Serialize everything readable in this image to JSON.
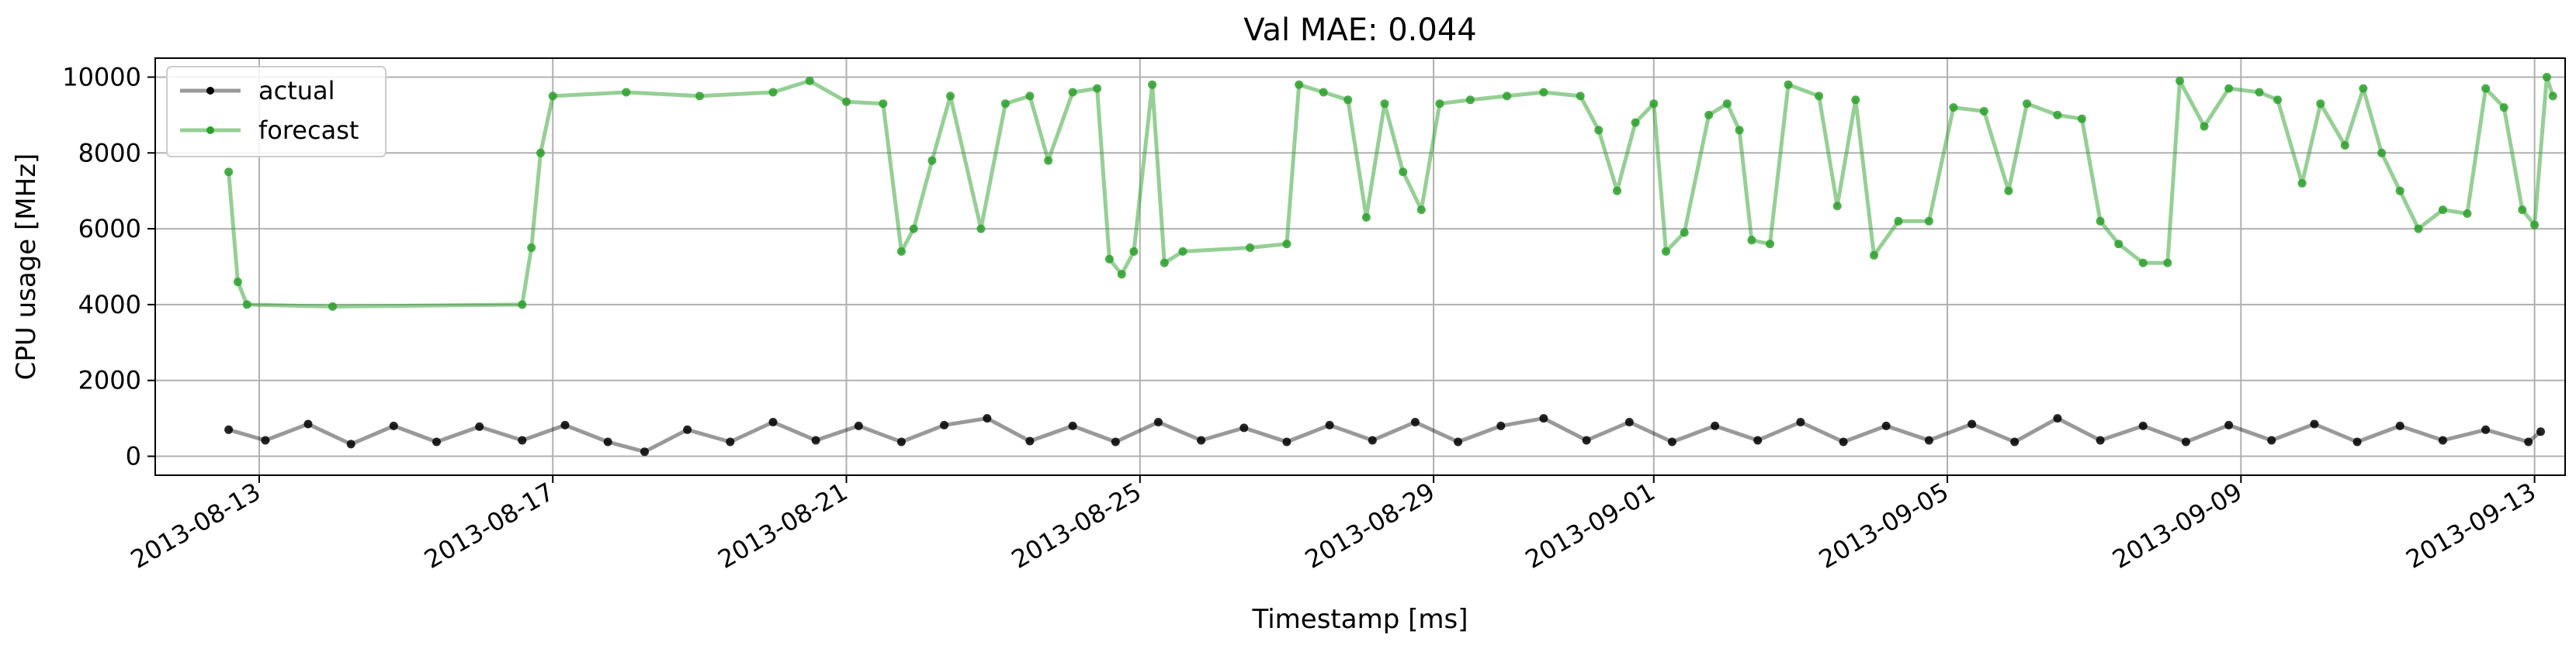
{
  "chart_data": {
    "type": "line",
    "title": "Val MAE: 0.044",
    "xlabel": "Timestamp [ms]",
    "ylabel": "CPU usage [MHz]",
    "x_type": "date",
    "xlim": [
      "2013-08-11T14:00",
      "2013-09-13T10:00"
    ],
    "ylim": [
      -500,
      10500
    ],
    "xticks": [
      "2013-08-13",
      "2013-08-17",
      "2013-08-21",
      "2013-08-25",
      "2013-08-29",
      "2013-09-01",
      "2013-09-05",
      "2013-09-09",
      "2013-09-13"
    ],
    "yticks": [
      0,
      2000,
      4000,
      6000,
      8000,
      10000
    ],
    "grid": true,
    "legend": {
      "position": "top-left",
      "entries": [
        "actual",
        "forecast"
      ]
    },
    "series": [
      {
        "name": "actual",
        "color": "#000000",
        "alpha": 0.4,
        "points": [
          [
            "2013-08-12T14:00",
            700
          ],
          [
            "2013-08-13T02:00",
            420
          ],
          [
            "2013-08-13T16:00",
            850
          ],
          [
            "2013-08-14T06:00",
            320
          ],
          [
            "2013-08-14T20:00",
            800
          ],
          [
            "2013-08-15T10:00",
            380
          ],
          [
            "2013-08-16T00:00",
            780
          ],
          [
            "2013-08-16T14:00",
            420
          ],
          [
            "2013-08-17T04:00",
            820
          ],
          [
            "2013-08-17T18:00",
            380
          ],
          [
            "2013-08-18T06:00",
            120
          ],
          [
            "2013-08-18T20:00",
            700
          ],
          [
            "2013-08-19T10:00",
            380
          ],
          [
            "2013-08-20T00:00",
            900
          ],
          [
            "2013-08-20T14:00",
            420
          ],
          [
            "2013-08-21T04:00",
            800
          ],
          [
            "2013-08-21T18:00",
            380
          ],
          [
            "2013-08-22T08:00",
            820
          ],
          [
            "2013-08-22T22:00",
            1000
          ],
          [
            "2013-08-23T12:00",
            400
          ],
          [
            "2013-08-24T02:00",
            800
          ],
          [
            "2013-08-24T16:00",
            380
          ],
          [
            "2013-08-25T06:00",
            900
          ],
          [
            "2013-08-25T20:00",
            420
          ],
          [
            "2013-08-26T10:00",
            750
          ],
          [
            "2013-08-27T00:00",
            380
          ],
          [
            "2013-08-27T14:00",
            820
          ],
          [
            "2013-08-28T04:00",
            420
          ],
          [
            "2013-08-28T18:00",
            900
          ],
          [
            "2013-08-29T08:00",
            380
          ],
          [
            "2013-08-29T22:00",
            800
          ],
          [
            "2013-08-30T12:00",
            1000
          ],
          [
            "2013-08-31T02:00",
            420
          ],
          [
            "2013-08-31T16:00",
            900
          ],
          [
            "2013-09-01T06:00",
            380
          ],
          [
            "2013-09-01T20:00",
            800
          ],
          [
            "2013-09-02T10:00",
            420
          ],
          [
            "2013-09-03T00:00",
            900
          ],
          [
            "2013-09-03T14:00",
            380
          ],
          [
            "2013-09-04T04:00",
            800
          ],
          [
            "2013-09-04T18:00",
            420
          ],
          [
            "2013-09-05T08:00",
            850
          ],
          [
            "2013-09-05T22:00",
            380
          ],
          [
            "2013-09-06T12:00",
            1000
          ],
          [
            "2013-09-07T02:00",
            420
          ],
          [
            "2013-09-07T16:00",
            800
          ],
          [
            "2013-09-08T06:00",
            380
          ],
          [
            "2013-09-08T20:00",
            820
          ],
          [
            "2013-09-09T10:00",
            420
          ],
          [
            "2013-09-10T00:00",
            850
          ],
          [
            "2013-09-10T14:00",
            380
          ],
          [
            "2013-09-11T04:00",
            800
          ],
          [
            "2013-09-11T18:00",
            420
          ],
          [
            "2013-09-12T08:00",
            700
          ],
          [
            "2013-09-12T22:00",
            380
          ],
          [
            "2013-09-13T02:00",
            650
          ]
        ]
      },
      {
        "name": "forecast",
        "color": "#2ca02c",
        "alpha": 0.5,
        "points": [
          [
            "2013-08-12T14:00",
            7500
          ],
          [
            "2013-08-12T17:00",
            4600
          ],
          [
            "2013-08-12T20:00",
            4000
          ],
          [
            "2013-08-14T00:00",
            3950
          ],
          [
            "2013-08-16T14:00",
            4000
          ],
          [
            "2013-08-16T17:00",
            5500
          ],
          [
            "2013-08-16T20:00",
            8000
          ],
          [
            "2013-08-17T00:00",
            9500
          ],
          [
            "2013-08-18T00:00",
            9600
          ],
          [
            "2013-08-19T00:00",
            9500
          ],
          [
            "2013-08-20T00:00",
            9600
          ],
          [
            "2013-08-20T12:00",
            9900
          ],
          [
            "2013-08-21T00:00",
            9350
          ],
          [
            "2013-08-21T12:00",
            9300
          ],
          [
            "2013-08-21T18:00",
            5400
          ],
          [
            "2013-08-21T22:00",
            6000
          ],
          [
            "2013-08-22T04:00",
            7800
          ],
          [
            "2013-08-22T10:00",
            9500
          ],
          [
            "2013-08-22T20:00",
            6000
          ],
          [
            "2013-08-23T04:00",
            9300
          ],
          [
            "2013-08-23T12:00",
            9500
          ],
          [
            "2013-08-23T18:00",
            7800
          ],
          [
            "2013-08-24T02:00",
            9600
          ],
          [
            "2013-08-24T10:00",
            9700
          ],
          [
            "2013-08-24T14:00",
            5200
          ],
          [
            "2013-08-24T18:00",
            4800
          ],
          [
            "2013-08-24T22:00",
            5400
          ],
          [
            "2013-08-25T04:00",
            9800
          ],
          [
            "2013-08-25T08:00",
            5100
          ],
          [
            "2013-08-25T14:00",
            5400
          ],
          [
            "2013-08-26T12:00",
            5500
          ],
          [
            "2013-08-27T00:00",
            5600
          ],
          [
            "2013-08-27T04:00",
            9800
          ],
          [
            "2013-08-27T12:00",
            9600
          ],
          [
            "2013-08-27T20:00",
            9400
          ],
          [
            "2013-08-28T02:00",
            6300
          ],
          [
            "2013-08-28T08:00",
            9300
          ],
          [
            "2013-08-28T14:00",
            7500
          ],
          [
            "2013-08-28T20:00",
            6500
          ],
          [
            "2013-08-29T02:00",
            9300
          ],
          [
            "2013-08-29T12:00",
            9400
          ],
          [
            "2013-08-30T00:00",
            9500
          ],
          [
            "2013-08-30T12:00",
            9600
          ],
          [
            "2013-08-31T00:00",
            9500
          ],
          [
            "2013-08-31T06:00",
            8600
          ],
          [
            "2013-08-31T12:00",
            7000
          ],
          [
            "2013-08-31T18:00",
            8800
          ],
          [
            "2013-09-01T00:00",
            9300
          ],
          [
            "2013-09-01T04:00",
            5400
          ],
          [
            "2013-09-01T10:00",
            5900
          ],
          [
            "2013-09-01T18:00",
            9000
          ],
          [
            "2013-09-02T00:00",
            9300
          ],
          [
            "2013-09-02T04:00",
            8600
          ],
          [
            "2013-09-02T08:00",
            5700
          ],
          [
            "2013-09-02T14:00",
            5600
          ],
          [
            "2013-09-02T20:00",
            9800
          ],
          [
            "2013-09-03T06:00",
            9500
          ],
          [
            "2013-09-03T12:00",
            6600
          ],
          [
            "2013-09-03T18:00",
            9400
          ],
          [
            "2013-09-04T00:00",
            5300
          ],
          [
            "2013-09-04T08:00",
            6200
          ],
          [
            "2013-09-04T18:00",
            6200
          ],
          [
            "2013-09-05T02:00",
            9200
          ],
          [
            "2013-09-05T12:00",
            9100
          ],
          [
            "2013-09-05T20:00",
            7000
          ],
          [
            "2013-09-06T02:00",
            9300
          ],
          [
            "2013-09-06T12:00",
            9000
          ],
          [
            "2013-09-06T20:00",
            8900
          ],
          [
            "2013-09-07T02:00",
            6200
          ],
          [
            "2013-09-07T08:00",
            5600
          ],
          [
            "2013-09-07T16:00",
            5100
          ],
          [
            "2013-09-08T00:00",
            5100
          ],
          [
            "2013-09-08T04:00",
            9900
          ],
          [
            "2013-09-08T12:00",
            8700
          ],
          [
            "2013-09-08T20:00",
            9700
          ],
          [
            "2013-09-09T06:00",
            9600
          ],
          [
            "2013-09-09T12:00",
            9400
          ],
          [
            "2013-09-09T20:00",
            7200
          ],
          [
            "2013-09-10T02:00",
            9300
          ],
          [
            "2013-09-10T10:00",
            8200
          ],
          [
            "2013-09-10T16:00",
            9700
          ],
          [
            "2013-09-10T22:00",
            8000
          ],
          [
            "2013-09-11T04:00",
            7000
          ],
          [
            "2013-09-11T10:00",
            6000
          ],
          [
            "2013-09-11T18:00",
            6500
          ],
          [
            "2013-09-12T02:00",
            6400
          ],
          [
            "2013-09-12T08:00",
            9700
          ],
          [
            "2013-09-12T14:00",
            9200
          ],
          [
            "2013-09-12T20:00",
            6500
          ],
          [
            "2013-09-13T00:00",
            6100
          ],
          [
            "2013-09-13T04:00",
            10000
          ],
          [
            "2013-09-13T06:00",
            9500
          ]
        ]
      }
    ]
  }
}
